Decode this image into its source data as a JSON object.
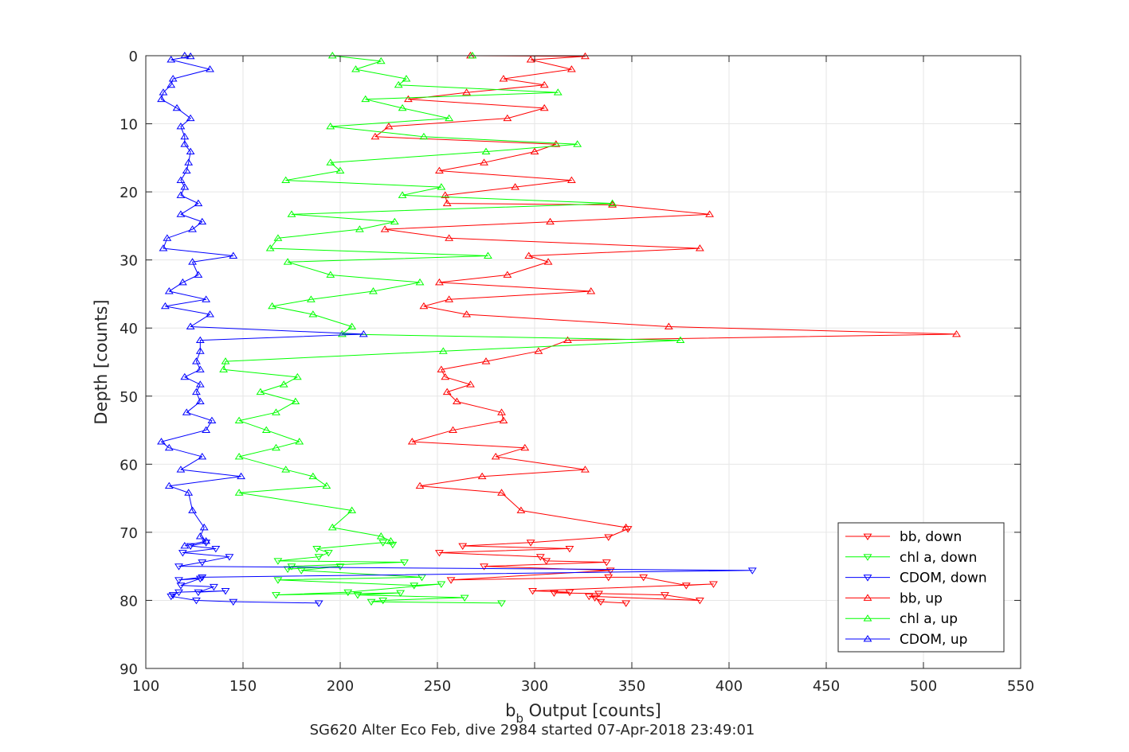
{
  "chart_data": {
    "type": "line",
    "title": "SG620 Alter Eco Feb, dive 2984 started 07-Apr-2018 23:49:01",
    "xlabel_main": "b",
    "xlabel_sub": "b",
    "xlabel_rest": " Output [counts]",
    "ylabel": "Depth [counts]",
    "xlim": [
      100,
      550
    ],
    "ylim": [
      0,
      90
    ],
    "y_reversed": true,
    "xticks": [
      100,
      150,
      200,
      250,
      300,
      350,
      400,
      450,
      500,
      550
    ],
    "yticks": [
      0,
      10,
      20,
      30,
      40,
      50,
      60,
      70,
      80,
      90
    ],
    "grid": true,
    "legend_position": "bottom-right",
    "series": [
      {
        "name": "bb, down",
        "color": "#ff0000",
        "marker": "triangle-down",
        "x": [
          347,
          334,
          331,
          328,
          385,
          367,
          333,
          310,
          318,
          299,
          392,
          378,
          356,
          338,
          257,
          339,
          274,
          337,
          306,
          303,
          251,
          318,
          263,
          298,
          338,
          348
        ],
        "y": [
          80.4,
          80.2,
          79.6,
          79.4,
          80.0,
          79.2,
          79.0,
          78.9,
          78.8,
          78.6,
          77.6,
          77.8,
          76.6,
          76.6,
          77.0,
          75.6,
          75.0,
          74.4,
          74.2,
          73.6,
          73.0,
          72.4,
          72.0,
          71.5,
          70.7,
          69.5
        ]
      },
      {
        "name": "chl a, down",
        "color": "#00ff00",
        "marker": "triangle-down",
        "x": [
          283,
          216,
          222,
          264,
          209,
          231,
          167,
          204,
          252,
          238,
          168,
          242,
          180,
          200,
          173,
          175,
          233,
          168,
          189,
          194,
          188,
          222,
          227
        ],
        "y": [
          80.4,
          80.2,
          80.0,
          79.6,
          79.2,
          78.9,
          79.2,
          78.8,
          77.6,
          77.8,
          77.0,
          76.6,
          75.6,
          75.0,
          75.4,
          75.0,
          74.4,
          74.2,
          73.6,
          73.0,
          72.4,
          71.5,
          71.8
        ]
      },
      {
        "name": "CDOM, down",
        "color": "#0000ff",
        "marker": "triangle-down",
        "x": [
          189,
          145,
          126,
          113,
          114,
          117,
          141,
          127,
          135,
          118,
          128,
          117,
          129,
          412,
          117,
          129,
          143,
          119,
          136,
          123,
          131
        ],
        "y": [
          80.4,
          80.2,
          80.0,
          79.4,
          79.2,
          78.8,
          78.6,
          78.8,
          78.0,
          77.8,
          76.8,
          77.0,
          76.6,
          75.6,
          75.0,
          74.4,
          73.6,
          73.0,
          72.4,
          72.0,
          71.5
        ]
      },
      {
        "name": "bb, up",
        "color": "#ff0000",
        "marker": "triangle-up",
        "x": [
          267,
          326,
          298,
          319,
          284,
          305,
          265,
          235,
          305,
          286,
          225,
          218,
          311,
          300,
          274,
          251,
          319,
          290,
          254,
          255,
          340,
          390,
          308,
          223,
          256,
          385,
          297,
          307,
          286,
          251,
          329,
          256,
          243,
          265,
          369,
          517,
          317,
          302,
          275,
          252,
          254,
          267,
          255,
          260,
          283,
          284,
          258,
          237,
          295,
          280,
          326,
          273,
          241,
          283,
          293,
          347
        ],
        "y": [
          0,
          0.1,
          0.6,
          2.0,
          3.4,
          4.3,
          5.4,
          6.4,
          7.7,
          9.2,
          10.4,
          11.9,
          13.0,
          14.1,
          15.7,
          16.9,
          18.3,
          19.3,
          20.5,
          21.7,
          21.9,
          23.3,
          24.4,
          25.5,
          26.8,
          28.3,
          29.4,
          30.3,
          32.2,
          33.3,
          34.6,
          35.8,
          36.8,
          38.0,
          39.8,
          40.9,
          41.8,
          43.4,
          44.9,
          46.1,
          47.2,
          48.3,
          49.4,
          50.8,
          52.4,
          53.6,
          55.0,
          56.7,
          57.6,
          58.9,
          60.8,
          61.8,
          63.2,
          64.2,
          66.8,
          69.3
        ]
      },
      {
        "name": "chl a, up",
        "color": "#00ff00",
        "marker": "triangle-up",
        "x": [
          268,
          196,
          221,
          208,
          234,
          230,
          312,
          213,
          232,
          256,
          195,
          243,
          322,
          275,
          195,
          200,
          172,
          252,
          232,
          340,
          175,
          228,
          210,
          168,
          164,
          276,
          173,
          195,
          241,
          217,
          185,
          165,
          186,
          206,
          201,
          375,
          253,
          141,
          140,
          178,
          171,
          159,
          177,
          167,
          148,
          162,
          179,
          167,
          148,
          172,
          186,
          193,
          148,
          206,
          196,
          221,
          226
        ],
        "y": [
          0,
          0,
          0.8,
          2.0,
          3.4,
          4.3,
          5.4,
          6.4,
          7.7,
          9.2,
          10.4,
          11.9,
          13.0,
          14.1,
          15.7,
          16.9,
          18.3,
          19.3,
          20.5,
          21.7,
          23.3,
          24.4,
          25.5,
          26.8,
          28.3,
          29.4,
          30.3,
          32.2,
          33.3,
          34.6,
          35.8,
          36.8,
          38.0,
          39.8,
          40.9,
          41.8,
          43.4,
          44.9,
          46.1,
          47.2,
          48.3,
          49.4,
          50.8,
          52.4,
          53.6,
          55.0,
          56.7,
          57.6,
          58.9,
          60.8,
          61.8,
          63.2,
          64.2,
          66.8,
          69.3,
          70.6,
          71.3
        ]
      },
      {
        "name": "CDOM, up",
        "color": "#0000ff",
        "marker": "triangle-up",
        "x": [
          120,
          123,
          113,
          133,
          114,
          113,
          109,
          108,
          116,
          123,
          118,
          120,
          120,
          123,
          122,
          121,
          118,
          120,
          118,
          127,
          118,
          129,
          124,
          111,
          109,
          145,
          124,
          127,
          119,
          112,
          131,
          110,
          133,
          123,
          212,
          128,
          128,
          126,
          128,
          120,
          128,
          126,
          128,
          121,
          134,
          131,
          108,
          112,
          129,
          118,
          149,
          112,
          122,
          124,
          130,
          128,
          131,
          120
        ],
        "y": [
          0,
          0.1,
          0.6,
          2.0,
          3.4,
          4.3,
          5.4,
          6.4,
          7.7,
          9.2,
          10.4,
          11.9,
          13.0,
          14.1,
          15.7,
          16.9,
          18.3,
          19.3,
          20.5,
          21.7,
          23.3,
          24.4,
          25.5,
          26.8,
          28.3,
          29.4,
          30.3,
          32.2,
          33.3,
          34.6,
          35.8,
          36.8,
          38.0,
          39.8,
          40.9,
          41.8,
          43.4,
          44.9,
          46.1,
          47.2,
          48.3,
          49.4,
          50.8,
          52.4,
          53.6,
          55.0,
          56.7,
          57.6,
          58.9,
          60.8,
          61.8,
          63.2,
          64.2,
          66.8,
          69.3,
          70.6,
          71.3,
          72.0
        ]
      }
    ]
  }
}
